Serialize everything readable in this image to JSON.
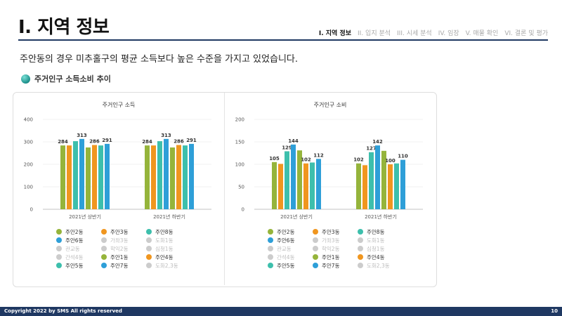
{
  "header": {
    "title": "I. 지역 정보",
    "nav": [
      {
        "label": "I. 지역 정보",
        "active": true
      },
      {
        "label": "II. 입지 분석",
        "active": false
      },
      {
        "label": "III. 시세 분석",
        "active": false
      },
      {
        "label": "IV. 임장",
        "active": false
      },
      {
        "label": "V. 매물 확인",
        "active": false
      },
      {
        "label": "VI. 결론 및 평가",
        "active": false
      }
    ]
  },
  "summary": "주안동의 경우 미추홀구의 평균 소득보다 높은 수준을 가지고 있었습니다.",
  "section_title": "주거인구 소득소비 추이",
  "chart_data": [
    {
      "type": "bar",
      "title": "주거인구 소득",
      "categories": [
        "2021년 상반기",
        "2021년 하반기"
      ],
      "ylim": [
        0,
        400
      ],
      "yticks": [
        0,
        100,
        200,
        300,
        400
      ],
      "grid": true,
      "legend": "bottom",
      "series": [
        {
          "name": "주안2동",
          "values": [
            284,
            284
          ],
          "color": "#95b43b",
          "label": true
        },
        {
          "name": "주안3동",
          "values": [
            284,
            284
          ],
          "color": "#f0961f",
          "label": false
        },
        {
          "name": "주안8동",
          "values": [
            303,
            303
          ],
          "color": "#3dbfac",
          "label": false
        },
        {
          "name": "주안6동",
          "values": [
            313,
            313
          ],
          "color": "#2e9fd8",
          "label": true
        },
        {
          "name": "주안1동",
          "values": [
            275,
            275
          ],
          "color": "#95b43b",
          "label": false
        },
        {
          "name": "주안4동",
          "values": [
            286,
            286
          ],
          "color": "#f0961f",
          "label": true
        },
        {
          "name": "주안5동",
          "values": [
            284,
            284
          ],
          "color": "#3dbfac",
          "label": false
        },
        {
          "name": "주안7동",
          "values": [
            291,
            291
          ],
          "color": "#2e9fd8",
          "label": true
        }
      ]
    },
    {
      "type": "bar",
      "title": "주거인구 소비",
      "categories": [
        "2021년 상반기",
        "2021년 하반기"
      ],
      "ylim": [
        0,
        200
      ],
      "yticks": [
        0,
        50,
        100,
        150,
        200
      ],
      "grid": true,
      "legend": "bottom",
      "series": [
        {
          "name": "주안2동",
          "values": [
            105,
            102
          ],
          "color": "#95b43b",
          "label": true
        },
        {
          "name": "주안3동",
          "values": [
            101,
            98
          ],
          "color": "#f0961f",
          "label": false
        },
        {
          "name": "주안8동",
          "values": [
            129,
            127
          ],
          "color": "#3dbfac",
          "label": true
        },
        {
          "name": "주안6동",
          "values": [
            144,
            142
          ],
          "color": "#2e9fd8",
          "label": true
        },
        {
          "name": "주안1동",
          "values": [
            131,
            130
          ],
          "color": "#95b43b",
          "label": false
        },
        {
          "name": "주안4동",
          "values": [
            102,
            100
          ],
          "color": "#f0961f",
          "label": true
        },
        {
          "name": "주안5동",
          "values": [
            104,
            102
          ],
          "color": "#3dbfac",
          "label": false
        },
        {
          "name": "주안7동",
          "values": [
            112,
            110
          ],
          "color": "#2e9fd8",
          "label": true
        }
      ]
    }
  ],
  "legend_items": [
    {
      "name": "주안2동",
      "color": "#95b43b",
      "active": true
    },
    {
      "name": "주안3동",
      "color": "#f0961f",
      "active": true
    },
    {
      "name": "주안8동",
      "color": "#3dbfac",
      "active": true
    },
    {
      "name": "주안6동",
      "color": "#2e9fd8",
      "active": true
    },
    {
      "name": "가좌3동",
      "color": "#cccccc",
      "active": false
    },
    {
      "name": "도화1동",
      "color": "#cccccc",
      "active": false
    },
    {
      "name": "관교동",
      "color": "#cccccc",
      "active": false
    },
    {
      "name": "학익2동",
      "color": "#cccccc",
      "active": false
    },
    {
      "name": "심청1동",
      "color": "#cccccc",
      "active": false
    },
    {
      "name": "간석4동",
      "color": "#cccccc",
      "active": false
    },
    {
      "name": "주안1동",
      "color": "#95b43b",
      "active": true
    },
    {
      "name": "주안4동",
      "color": "#f0961f",
      "active": true
    },
    {
      "name": "주안5동",
      "color": "#3dbfac",
      "active": true
    },
    {
      "name": "주안7동",
      "color": "#2e9fd8",
      "active": true
    },
    {
      "name": "도화2,3동",
      "color": "#cccccc",
      "active": false
    }
  ],
  "footer": {
    "copyright": "Copyright 2022 by SMS All rights reserved",
    "page": "10"
  }
}
